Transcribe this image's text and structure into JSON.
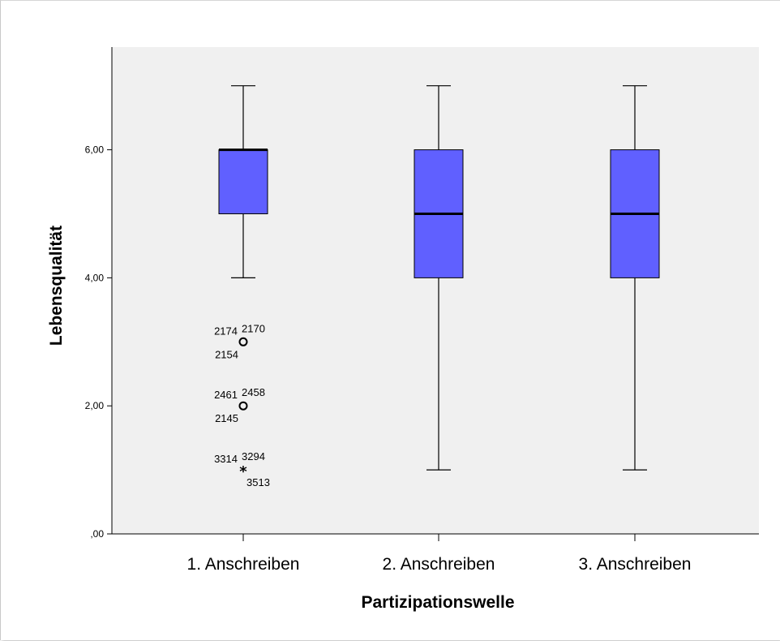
{
  "chart_data": {
    "type": "boxplot",
    "title": "",
    "xlabel": "Partizipationswelle",
    "ylabel": "Lebensqualität",
    "ylim": [
      0,
      7.6
    ],
    "yticks": [
      0,
      2,
      4,
      6
    ],
    "ytick_labels": [
      ",00",
      "2,00",
      "4,00",
      "6,00"
    ],
    "categories": [
      "1. Anschreiben",
      "2. Anschreiben",
      "3. Anschreiben"
    ],
    "box_color": "#6060ff",
    "plot_background": "#f0f0f0",
    "boxes": [
      {
        "category": "1. Anschreiben",
        "whisker_low": 4,
        "q1": 5,
        "median": 6,
        "q3": 6,
        "whisker_high": 7,
        "outliers": [
          {
            "value": 3,
            "marker": "circle",
            "labels": {
              "left": "2174",
              "right": "2170",
              "below": "2154"
            }
          },
          {
            "value": 2,
            "marker": "circle",
            "labels": {
              "left": "2461",
              "right": "2458",
              "below": "2145"
            }
          },
          {
            "value": 1,
            "marker": "star",
            "labels": {
              "left": "3314",
              "right": "3294",
              "below": "3513"
            }
          }
        ]
      },
      {
        "category": "2. Anschreiben",
        "whisker_low": 1,
        "q1": 4,
        "median": 5,
        "q3": 6,
        "whisker_high": 7,
        "outliers": []
      },
      {
        "category": "3. Anschreiben",
        "whisker_low": 1,
        "q1": 4,
        "median": 5,
        "q3": 6,
        "whisker_high": 7,
        "outliers": []
      }
    ]
  }
}
